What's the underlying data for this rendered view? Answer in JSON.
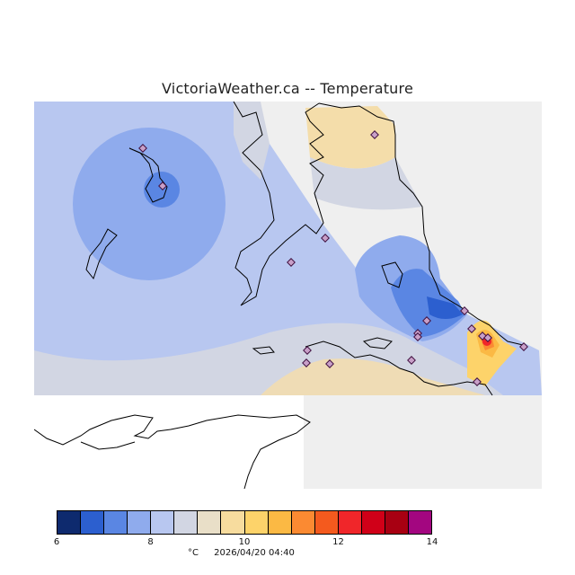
{
  "title": "VictoriaWeather.ca -- Temperature",
  "colorbar": {
    "colors": [
      "#0e2a6e",
      "#2c5fcf",
      "#5a86e3",
      "#8fabed",
      "#b8c7f0",
      "#d2d6e3",
      "#e9dfc8",
      "#f7dc9e",
      "#fdd36a",
      "#fbb944",
      "#fb8a32",
      "#f45a1e",
      "#f0262a",
      "#d00018",
      "#a80012",
      "#a30680"
    ],
    "ticks": [
      {
        "label": "6",
        "value": 6
      },
      {
        "label": "8",
        "value": 8
      },
      {
        "label": "10",
        "value": 10
      },
      {
        "label": "12",
        "value": 12
      },
      {
        "label": "14",
        "value": 14
      }
    ],
    "min": 6,
    "max": 14
  },
  "footer": {
    "unit": "°C",
    "timestamp": "2026/04/20 04:40"
  }
}
